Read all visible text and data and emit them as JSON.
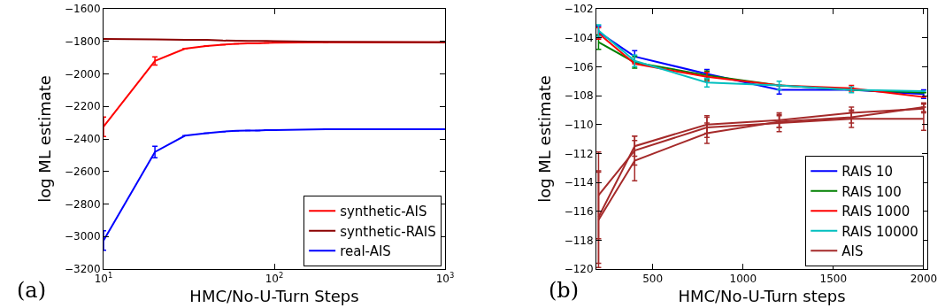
{
  "chart_data": [
    {
      "type": "line",
      "xlabel": "HMC/No-U-Turn Steps",
      "ylabel": "log ML estimate",
      "annotations": [
        "(a)"
      ],
      "log": "x",
      "grid": false,
      "legend": "bottom right",
      "line_style": "solid",
      "x": [
        10,
        20,
        30,
        40,
        50,
        60,
        70,
        80,
        90,
        100,
        200,
        1000
      ],
      "xlim": [
        10,
        1000
      ],
      "xticks": [
        {
          "value": 10,
          "label": "10$^{1}$"
        },
        {
          "value": 100,
          "label": "10$^{2}$"
        },
        {
          "value": 1000,
          "label": "10$^{3}$"
        }
      ],
      "ylim": [
        -3200,
        -1600
      ],
      "yticks": [
        -3200,
        -3000,
        -2800,
        -2600,
        -2400,
        -2200,
        -2000,
        -1800,
        -1600
      ],
      "series": [
        {
          "name": "synthetic-AIS",
          "color": "#ff0000",
          "values": [
            -2325,
            -1920,
            -1845,
            -1828,
            -1820,
            -1815,
            -1812,
            -1812,
            -1810,
            -1808,
            -1805,
            -1805
          ],
          "errors": [
            60,
            25,
            null,
            null,
            null,
            null,
            null,
            null,
            null,
            null,
            null,
            null
          ]
        },
        {
          "name": "synthetic-RAIS",
          "color": "#8b0000",
          "values": [
            -1785,
            -1788,
            -1790,
            -1791,
            -1795,
            -1796,
            -1797,
            -1797,
            -1797,
            -1798,
            -1803,
            -1805
          ]
        },
        {
          "name": "real-AIS",
          "color": "#0000ff",
          "values": [
            -3025,
            -2480,
            -2380,
            -2365,
            -2355,
            -2350,
            -2348,
            -2348,
            -2346,
            -2345,
            -2340,
            -2340
          ],
          "errors": [
            60,
            35,
            null,
            null,
            null,
            null,
            null,
            null,
            null,
            null,
            null,
            null
          ]
        }
      ]
    },
    {
      "type": "line",
      "xlabel": "HMC/No-U-Turn steps",
      "ylabel": "log ML estimate",
      "annotations": [
        "(b)"
      ],
      "grid": false,
      "legend": "bottom right",
      "line_style": "solid",
      "x": [
        200,
        400,
        800,
        1200,
        1600,
        2000
      ],
      "xlim": [
        188,
        2020
      ],
      "xticks": [
        500,
        1000,
        1500,
        2000
      ],
      "ylim": [
        -120,
        -102
      ],
      "yticks": [
        -120,
        -118,
        -116,
        -114,
        -112,
        -110,
        -108,
        -106,
        -104,
        -102
      ],
      "series": [
        {
          "name": "RAIS 10",
          "color": "#0000ff",
          "values": [
            -103.6,
            -105.3,
            -106.5,
            -107.6,
            -107.6,
            -107.9
          ],
          "errors": [
            0.4,
            0.4,
            0.3,
            0.3,
            null,
            0.3
          ]
        },
        {
          "name": "RAIS 100",
          "color": "#008000",
          "values": [
            -104.3,
            -105.7,
            -106.6,
            -107.3,
            -107.6,
            -107.8
          ],
          "errors": [
            0.5,
            0.4,
            0.3,
            null,
            null,
            null
          ]
        },
        {
          "name": "RAIS 1000",
          "color": "#ff0000",
          "values": [
            -103.7,
            -105.8,
            -106.7,
            -107.3,
            -107.5,
            -108.1
          ],
          "errors": [
            0.4,
            null,
            0.3,
            null,
            0.2,
            null
          ]
        },
        {
          "name": "RAIS 10000",
          "color": "#00bfbf",
          "values": [
            -103.5,
            -105.6,
            -107.1,
            -107.3,
            -107.6,
            -107.7
          ],
          "errors": [
            0.4,
            0.4,
            0.3,
            0.3,
            0.2,
            null
          ]
        },
        {
          "name": "AIS",
          "color": "#a52a2a",
          "values": [
            -116.4,
            -111.5,
            -110.0,
            -109.7,
            -109.2,
            -108.9
          ],
          "errors": [
            3.2,
            0.7,
            0.6,
            0.5,
            0.4,
            0.3
          ]
        },
        {
          "color": "#a52a2a",
          "values": [
            -114.9,
            -111.8,
            -110.2,
            -109.9,
            -109.6,
            -109.6
          ],
          "errors": [
            3.0,
            1.0,
            0.7,
            0.6,
            0.6,
            0.8
          ]
        },
        {
          "color": "#a52a2a",
          "values": [
            -116.6,
            -112.5,
            -110.6,
            -109.8,
            -109.5,
            -108.8
          ],
          "errors": [
            3.3,
            1.4,
            0.7,
            0.4,
            0.4,
            0.3
          ]
        }
      ]
    }
  ]
}
